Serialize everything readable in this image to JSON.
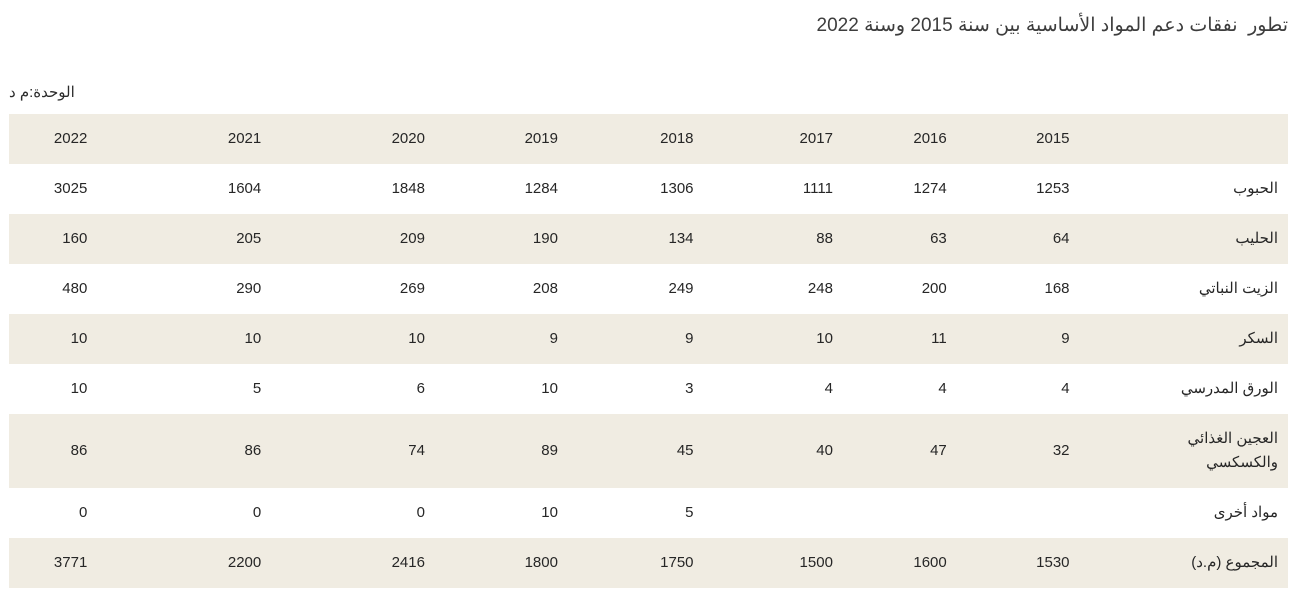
{
  "title": "تطور  نفقات دعم المواد الأساسية بين سنة 2015 وسنة 2022",
  "unit_label": "الوحدة:م د",
  "colors": {
    "band": "#f0ece2",
    "text": "#262626",
    "title": "#3d3d3d",
    "background": "#ffffff"
  },
  "table": {
    "year_headers": [
      "2015",
      "2016",
      "2017",
      "2018",
      "2019",
      "2020",
      "2021",
      "2022"
    ],
    "corner": "",
    "rows": [
      {
        "label": "الحبوب",
        "values": [
          "1253",
          "1274",
          "1111",
          "1306",
          "1284",
          "1848",
          "1604",
          "3025"
        ]
      },
      {
        "label": "الحليب",
        "values": [
          "64",
          "63",
          "88",
          "134",
          "190",
          "209",
          "205",
          "160"
        ]
      },
      {
        "label": "الزيت النباتي",
        "values": [
          "168",
          "200",
          "248",
          "249",
          "208",
          "269",
          "290",
          "480"
        ]
      },
      {
        "label": "السكر",
        "values": [
          "9",
          "11",
          "10",
          "9",
          "9",
          "10",
          "10",
          "10"
        ]
      },
      {
        "label": "الورق المدرسي",
        "values": [
          "4",
          "4",
          "4",
          "3",
          "10",
          "6",
          "5",
          "10"
        ]
      },
      {
        "label": "العجين الغذائي",
        "label_line2": "والكسكسي",
        "values": [
          "32",
          "47",
          "40",
          "45",
          "89",
          "74",
          "86",
          "86"
        ]
      },
      {
        "label": "مواد أخرى",
        "values": [
          "",
          "",
          "",
          "5",
          "10",
          "0",
          "0",
          "0"
        ]
      },
      {
        "label": "المجموع (م.د)",
        "values": [
          "1530",
          "1600",
          "1500",
          "1750",
          "1800",
          "2416",
          "2200",
          "3771"
        ]
      }
    ]
  }
}
